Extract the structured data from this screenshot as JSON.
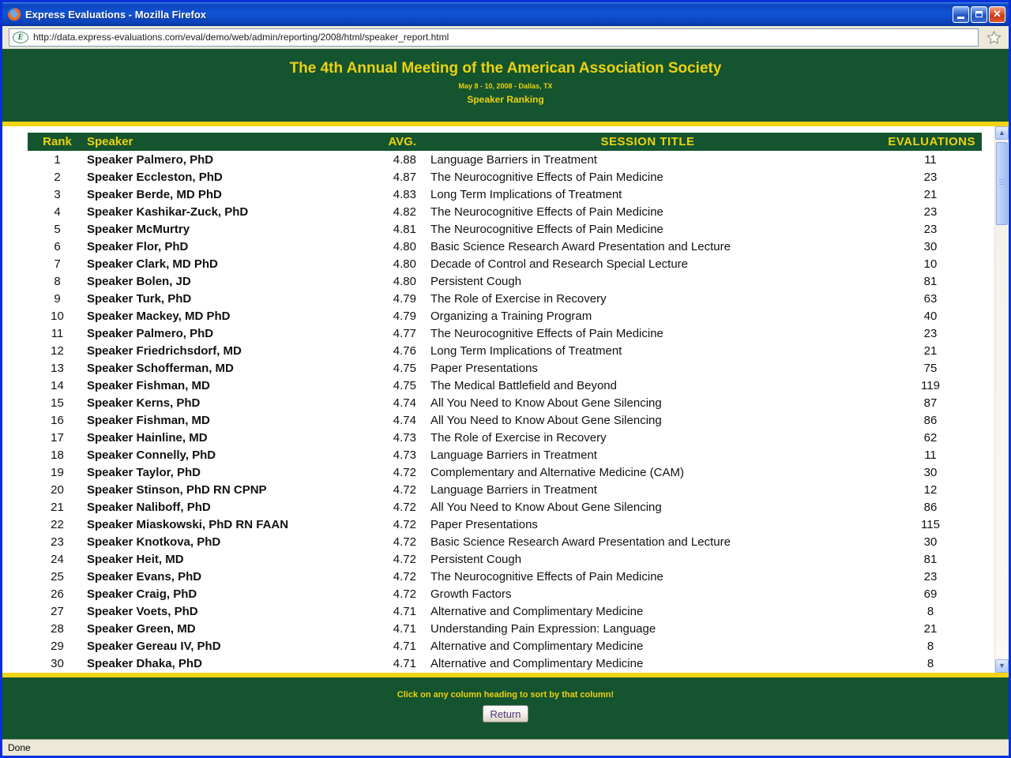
{
  "window": {
    "title": "Express Evaluations - Mozilla Firefox",
    "status": "Done"
  },
  "browser": {
    "url": "http://data.express-evaluations.com/eval/demo/web/admin/reporting/2008/html/speaker_report.html"
  },
  "page": {
    "title": "The 4th Annual Meeting of the American Association Society",
    "subtitle": "May 8 - 10, 2008 - Dallas, TX",
    "heading": "Speaker Ranking",
    "footer_note": "Click on any column heading to sort by that column!",
    "return_label": "Return"
  },
  "colors": {
    "header_green": "#14542F",
    "accent_gold": "#F2D417",
    "heading_text_gold": "#EDD20E",
    "titlebar_blue": "#1254D6",
    "window_border_blue": "#0831D9",
    "chrome_beige": "#ECE9D8"
  },
  "table": {
    "columns": [
      "Rank",
      "Speaker",
      "AVG.",
      "SESSION TITLE",
      "EVALUATIONS"
    ],
    "rows": [
      {
        "rank": 1,
        "speaker": "Speaker Palmero, PhD",
        "avg": "4.88",
        "session": "Language Barriers in Treatment",
        "evals": 11
      },
      {
        "rank": 2,
        "speaker": "Speaker Eccleston, PhD",
        "avg": "4.87",
        "session": "The Neurocognitive Effects of Pain Medicine",
        "evals": 23
      },
      {
        "rank": 3,
        "speaker": "Speaker Berde, MD PhD",
        "avg": "4.83",
        "session": "Long Term Implications of Treatment",
        "evals": 21
      },
      {
        "rank": 4,
        "speaker": "Speaker Kashikar-Zuck, PhD",
        "avg": "4.82",
        "session": "The Neurocognitive Effects of Pain Medicine",
        "evals": 23
      },
      {
        "rank": 5,
        "speaker": "Speaker McMurtry",
        "avg": "4.81",
        "session": "The Neurocognitive Effects of Pain Medicine",
        "evals": 23
      },
      {
        "rank": 6,
        "speaker": "Speaker Flor, PhD",
        "avg": "4.80",
        "session": "Basic Science Research Award Presentation and Lecture",
        "evals": 30
      },
      {
        "rank": 7,
        "speaker": "Speaker Clark, MD PhD",
        "avg": "4.80",
        "session": "Decade of Control and Research Special Lecture",
        "evals": 10
      },
      {
        "rank": 8,
        "speaker": "Speaker Bolen, JD",
        "avg": "4.80",
        "session": "Persistent Cough",
        "evals": 81
      },
      {
        "rank": 9,
        "speaker": "Speaker Turk, PhD",
        "avg": "4.79",
        "session": "The Role of Exercise in Recovery",
        "evals": 63
      },
      {
        "rank": 10,
        "speaker": "Speaker Mackey, MD PhD",
        "avg": "4.79",
        "session": "Organizing a Training Program",
        "evals": 40
      },
      {
        "rank": 11,
        "speaker": "Speaker Palmero, PhD",
        "avg": "4.77",
        "session": "The Neurocognitive Effects of Pain Medicine",
        "evals": 23
      },
      {
        "rank": 12,
        "speaker": "Speaker Friedrichsdorf, MD",
        "avg": "4.76",
        "session": "Long Term Implications of Treatment",
        "evals": 21
      },
      {
        "rank": 13,
        "speaker": "Speaker Schofferman, MD",
        "avg": "4.75",
        "session": "Paper Presentations",
        "evals": 75
      },
      {
        "rank": 14,
        "speaker": "Speaker Fishman, MD",
        "avg": "4.75",
        "session": "The Medical Battlefield and Beyond",
        "evals": 119
      },
      {
        "rank": 15,
        "speaker": "Speaker Kerns, PhD",
        "avg": "4.74",
        "session": "All You Need to Know About Gene Silencing",
        "evals": 87
      },
      {
        "rank": 16,
        "speaker": "Speaker Fishman, MD",
        "avg": "4.74",
        "session": "All You Need to Know About Gene Silencing",
        "evals": 86
      },
      {
        "rank": 17,
        "speaker": "Speaker Hainline, MD",
        "avg": "4.73",
        "session": "The Role of Exercise in Recovery",
        "evals": 62
      },
      {
        "rank": 18,
        "speaker": "Speaker Connelly, PhD",
        "avg": "4.73",
        "session": "Language Barriers in Treatment",
        "evals": 11
      },
      {
        "rank": 19,
        "speaker": "Speaker Taylor, PhD",
        "avg": "4.72",
        "session": "Complementary and Alternative Medicine (CAM)",
        "evals": 30
      },
      {
        "rank": 20,
        "speaker": "Speaker Stinson, PhD RN CPNP",
        "avg": "4.72",
        "session": "Language Barriers in Treatment",
        "evals": 12
      },
      {
        "rank": 21,
        "speaker": "Speaker Naliboff, PhD",
        "avg": "4.72",
        "session": "All You Need to Know About Gene Silencing",
        "evals": 86
      },
      {
        "rank": 22,
        "speaker": "Speaker Miaskowski, PhD RN FAAN",
        "avg": "4.72",
        "session": "Paper Presentations",
        "evals": 115
      },
      {
        "rank": 23,
        "speaker": "Speaker Knotkova, PhD",
        "avg": "4.72",
        "session": "Basic Science Research Award Presentation and Lecture",
        "evals": 30
      },
      {
        "rank": 24,
        "speaker": "Speaker Heit, MD",
        "avg": "4.72",
        "session": "Persistent Cough",
        "evals": 81
      },
      {
        "rank": 25,
        "speaker": "Speaker Evans, PhD",
        "avg": "4.72",
        "session": "The Neurocognitive Effects of Pain Medicine",
        "evals": 23
      },
      {
        "rank": 26,
        "speaker": "Speaker Craig, PhD",
        "avg": "4.72",
        "session": "Growth Factors",
        "evals": 69
      },
      {
        "rank": 27,
        "speaker": "Speaker Voets, PhD",
        "avg": "4.71",
        "session": "Alternative and Complimentary Medicine",
        "evals": 8
      },
      {
        "rank": 28,
        "speaker": "Speaker Green, MD",
        "avg": "4.71",
        "session": "Understanding Pain Expression: Language",
        "evals": 21
      },
      {
        "rank": 29,
        "speaker": "Speaker Gereau IV, PhD",
        "avg": "4.71",
        "session": "Alternative and Complimentary Medicine",
        "evals": 8
      },
      {
        "rank": 30,
        "speaker": "Speaker Dhaka, PhD",
        "avg": "4.71",
        "session": "Alternative and Complimentary Medicine",
        "evals": 8
      }
    ]
  }
}
